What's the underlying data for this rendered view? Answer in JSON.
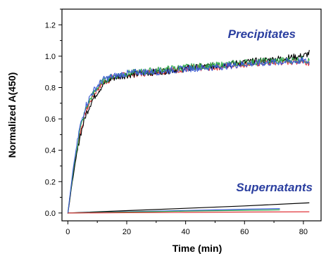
{
  "chart_data": {
    "type": "line",
    "title": "",
    "xlabel": "Time (min)",
    "ylabel": "Normalized A(450)",
    "xlim": [
      -2,
      86
    ],
    "ylim": [
      -0.05,
      1.3
    ],
    "x_ticks": [
      0,
      20,
      40,
      60,
      80
    ],
    "x_tick_labels": [
      "0",
      "20",
      "40",
      "60",
      "80"
    ],
    "y_ticks": [
      0.0,
      0.2,
      0.4,
      0.6,
      0.8,
      1.0,
      1.2
    ],
    "y_tick_labels": [
      "0.0",
      "0.2",
      "0.4",
      "0.6",
      "0.8",
      "1.0",
      "1.2"
    ],
    "grid": false,
    "legend": "none",
    "annotations": [
      {
        "text": "Precipitates",
        "color": "#2b3fa0"
      },
      {
        "text": "Supernatants",
        "color": "#2b3fa0"
      }
    ],
    "series": [
      {
        "group": "precipitates",
        "color": "#e0353a",
        "x": [
          0,
          2,
          4,
          6,
          8,
          10,
          12,
          15,
          20,
          25,
          30,
          40,
          50,
          60,
          70,
          80,
          82
        ],
        "y": [
          0.0,
          0.28,
          0.5,
          0.64,
          0.73,
          0.79,
          0.83,
          0.86,
          0.88,
          0.89,
          0.9,
          0.92,
          0.93,
          0.95,
          0.96,
          0.97,
          0.96
        ]
      },
      {
        "group": "precipitates",
        "color": "#000000",
        "x": [
          0,
          2,
          4,
          6,
          8,
          10,
          12,
          15,
          20,
          25,
          30,
          40,
          50,
          60,
          70,
          80,
          82
        ],
        "y": [
          0.0,
          0.26,
          0.48,
          0.62,
          0.71,
          0.77,
          0.82,
          0.86,
          0.88,
          0.89,
          0.9,
          0.92,
          0.94,
          0.96,
          0.98,
          1.0,
          1.02
        ]
      },
      {
        "group": "precipitates",
        "color": "#2ea84a",
        "x": [
          0,
          2,
          4,
          6,
          8,
          10,
          12,
          15,
          20,
          25,
          30,
          40,
          50,
          60,
          70,
          80,
          82
        ],
        "y": [
          0.0,
          0.29,
          0.52,
          0.66,
          0.74,
          0.8,
          0.84,
          0.87,
          0.89,
          0.9,
          0.91,
          0.93,
          0.94,
          0.96,
          0.97,
          0.98,
          0.97
        ]
      },
      {
        "group": "precipitates",
        "color": "#3d5bd6",
        "x": [
          0,
          2,
          4,
          6,
          8,
          10,
          12,
          15,
          20,
          25,
          30,
          40,
          50,
          60,
          70,
          80,
          82
        ],
        "y": [
          0.0,
          0.31,
          0.54,
          0.68,
          0.76,
          0.81,
          0.85,
          0.87,
          0.89,
          0.9,
          0.9,
          0.92,
          0.93,
          0.95,
          0.96,
          0.97,
          0.96
        ]
      },
      {
        "group": "supernatants",
        "color": "#000000",
        "x": [
          0,
          20,
          40,
          60,
          82
        ],
        "y": [
          0.0,
          0.015,
          0.03,
          0.045,
          0.065
        ]
      },
      {
        "group": "supernatants",
        "color": "#3d5bd6",
        "x": [
          0,
          20,
          40,
          60,
          72
        ],
        "y": [
          0.0,
          0.008,
          0.016,
          0.024,
          0.028
        ]
      },
      {
        "group": "supernatants",
        "color": "#2ea84a",
        "x": [
          0,
          20,
          40,
          60,
          72
        ],
        "y": [
          0.0,
          0.006,
          0.012,
          0.017,
          0.02
        ]
      },
      {
        "group": "supernatants",
        "color": "#e0353a",
        "x": [
          0,
          20,
          40,
          60,
          82
        ],
        "y": [
          0.0,
          0.002,
          0.004,
          0.006,
          0.008
        ]
      }
    ]
  }
}
